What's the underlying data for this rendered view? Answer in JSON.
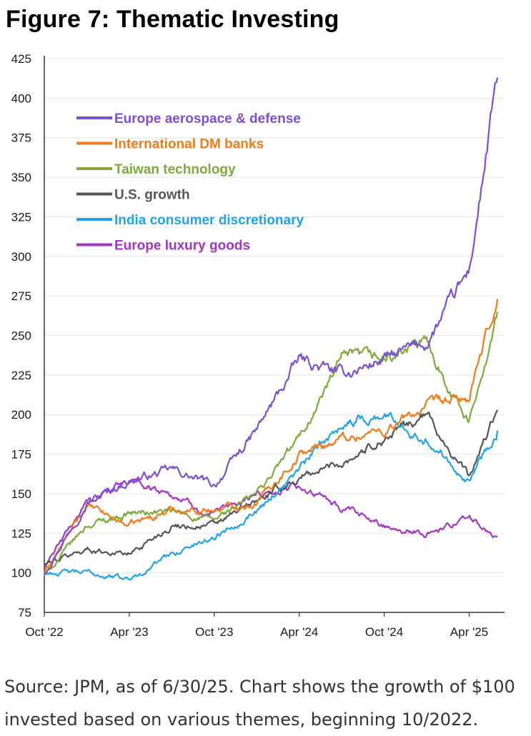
{
  "figure": {
    "title": "Figure 7: Thematic Investing",
    "source": "Source: JPM, as of 6/30/25. Chart shows the growth of $100 invested based on various themes, beginning 10/2022."
  },
  "chart_data": {
    "type": "line",
    "title": "Figure 7: Thematic Investing",
    "xlabel": "",
    "ylabel": "",
    "x_tick_labels": [
      "Oct '22",
      "Apr '23",
      "Oct '23",
      "Apr '24",
      "Oct '24",
      "Apr '25"
    ],
    "x": [
      "Oct '22",
      "Jan '23",
      "Apr '23",
      "Jul '23",
      "Oct '23",
      "Jan '24",
      "Apr '24",
      "Jul '24",
      "Oct '24",
      "Jan '25",
      "Apr '25",
      "Jun '25"
    ],
    "x_months": [
      0,
      3,
      6,
      9,
      12,
      15,
      18,
      21,
      24,
      27,
      30,
      32
    ],
    "ylim": [
      75,
      425
    ],
    "y_ticks": [
      75,
      100,
      125,
      150,
      175,
      200,
      225,
      250,
      275,
      300,
      325,
      350,
      375,
      400,
      425
    ],
    "grid": "horizontal",
    "legend_position": "top-left",
    "series": [
      {
        "name": "Europe aerospace & defense",
        "color": "#7B4FD6",
        "values": [
          100,
          145,
          158,
          165,
          155,
          190,
          235,
          225,
          235,
          245,
          290,
          413
        ]
      },
      {
        "name": "International DM banks",
        "color": "#F47A17",
        "values": [
          100,
          142,
          130,
          140,
          140,
          145,
          175,
          185,
          190,
          205,
          210,
          273
        ]
      },
      {
        "name": "Taiwan technology",
        "color": "#7DAA3A",
        "values": [
          98,
          130,
          138,
          138,
          133,
          150,
          185,
          235,
          235,
          245,
          195,
          265
        ]
      },
      {
        "name": "U.S. growth",
        "color": "#555555",
        "values": [
          105,
          115,
          112,
          130,
          130,
          145,
          160,
          170,
          185,
          200,
          160,
          203
        ]
      },
      {
        "name": "India consumer discretionary",
        "color": "#1FA3EC",
        "values": [
          100,
          100,
          96,
          112,
          123,
          140,
          165,
          195,
          200,
          185,
          160,
          190
        ]
      },
      {
        "name": "Europe luxury goods",
        "color": "#A334C8",
        "values": [
          103,
          145,
          158,
          150,
          135,
          150,
          155,
          140,
          130,
          125,
          135,
          123
        ]
      }
    ]
  }
}
